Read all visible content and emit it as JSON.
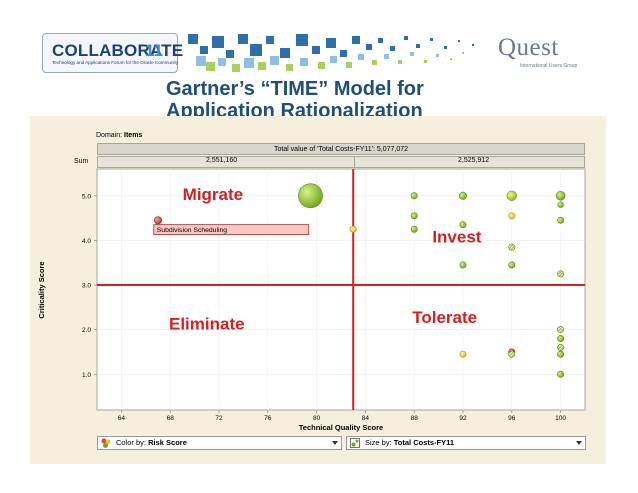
{
  "header": {
    "logo_text": "COLLABORATE",
    "logo_number": "11",
    "logo_tagline": "Technology and Applications Forum for the Oracle Community",
    "quest_text": "Quest",
    "quest_tagline": "International Users Group",
    "title_line1": "Gartner’s “TIME” Model for",
    "title_line2": "Application Rationalization"
  },
  "panel": {
    "domain_label": "Domain:",
    "domain_value": "Items",
    "total_text": "Total value of 'Total Costs-FY11': 5,077,072",
    "sum_label": "Sum",
    "sum_left": "2,551,160",
    "sum_right": "2,525,912",
    "color_by_label": "Color by:",
    "color_by_value": "Risk Score",
    "size_by_label": "Size by:",
    "size_by_value": "Total Costs-FY11"
  },
  "colors": {
    "quadrant_line": "#d62020",
    "quadrant_label": "#d62020",
    "bubble_green": "#7fb52b",
    "bubble_yellow": "#e3d33a",
    "bubble_red": "#c0392b",
    "title": "#1f4e79"
  },
  "chart_data": {
    "type": "scatter",
    "title": "",
    "xlabel": "Technical Quality Score",
    "ylabel": "Criticality Score",
    "xlim": [
      62,
      102
    ],
    "ylim": [
      0.2,
      5.6
    ],
    "xticks": [
      64,
      68,
      72,
      76,
      80,
      84,
      88,
      92,
      96,
      100
    ],
    "yticks": [
      1.0,
      2.0,
      3.0,
      4.0,
      5.0
    ],
    "xtick_labels": [
      "64",
      "68",
      "72",
      "76",
      "80",
      "84",
      "88",
      "92",
      "96",
      "100"
    ],
    "ytick_labels": [
      "1.0",
      "2.0",
      "3.0",
      "4.0",
      "5.0"
    ],
    "dividers": {
      "x": 83,
      "y": 3.0
    },
    "quadrants": [
      {
        "label": "Migrate",
        "x": 71.5,
        "y": 4.9
      },
      {
        "label": "Invest",
        "x": 91.5,
        "y": 3.95
      },
      {
        "label": "Eliminate",
        "x": 71,
        "y": 2.0
      },
      {
        "label": "Tolerate",
        "x": 90.5,
        "y": 2.15
      }
    ],
    "annotation": {
      "text": "Subdivision Scheduling",
      "x": 66.9,
      "y": 4.42
    },
    "points": [
      {
        "x": 79.5,
        "y": 5.0,
        "size": 9,
        "color": "green"
      },
      {
        "x": 67,
        "y": 4.45,
        "size": 2,
        "color": "red"
      },
      {
        "x": 83,
        "y": 4.25,
        "size": 1.5,
        "color": "yellow"
      },
      {
        "x": 88,
        "y": 5.0,
        "size": 1.5,
        "color": "green"
      },
      {
        "x": 88,
        "y": 4.55,
        "size": 1.5,
        "color": "green"
      },
      {
        "x": 88,
        "y": 4.25,
        "size": 1.5,
        "color": "green"
      },
      {
        "x": 92,
        "y": 5.0,
        "size": 2,
        "color": "green"
      },
      {
        "x": 92,
        "y": 4.35,
        "size": 1.5,
        "color": "green"
      },
      {
        "x": 92,
        "y": 3.45,
        "size": 1.5,
        "color": "green"
      },
      {
        "x": 96,
        "y": 5.0,
        "size": 3.5,
        "color": "yellow-green"
      },
      {
        "x": 96,
        "y": 4.55,
        "size": 1.5,
        "color": "yellow"
      },
      {
        "x": 96,
        "y": 3.85,
        "size": 1.5,
        "color": "pattern"
      },
      {
        "x": 96,
        "y": 3.45,
        "size": 1.5,
        "color": "green"
      },
      {
        "x": 100,
        "y": 5.0,
        "size": 3,
        "color": "green"
      },
      {
        "x": 100,
        "y": 4.8,
        "size": 1.2,
        "color": "green"
      },
      {
        "x": 100,
        "y": 4.45,
        "size": 1.5,
        "color": "green"
      },
      {
        "x": 100,
        "y": 3.25,
        "size": 1.5,
        "color": "pattern"
      },
      {
        "x": 100,
        "y": 2.0,
        "size": 1.5,
        "color": "pattern"
      },
      {
        "x": 100,
        "y": 1.8,
        "size": 1.5,
        "color": "green"
      },
      {
        "x": 100,
        "y": 1.6,
        "size": 1.5,
        "color": "pattern"
      },
      {
        "x": 100,
        "y": 1.45,
        "size": 1.5,
        "color": "green"
      },
      {
        "x": 100,
        "y": 1.0,
        "size": 1.5,
        "color": "green"
      },
      {
        "x": 92,
        "y": 1.45,
        "size": 1.5,
        "color": "yellow"
      },
      {
        "x": 96,
        "y": 1.5,
        "size": 1.5,
        "color": "red"
      },
      {
        "x": 96,
        "y": 1.45,
        "size": 1.5,
        "color": "pattern"
      }
    ]
  }
}
